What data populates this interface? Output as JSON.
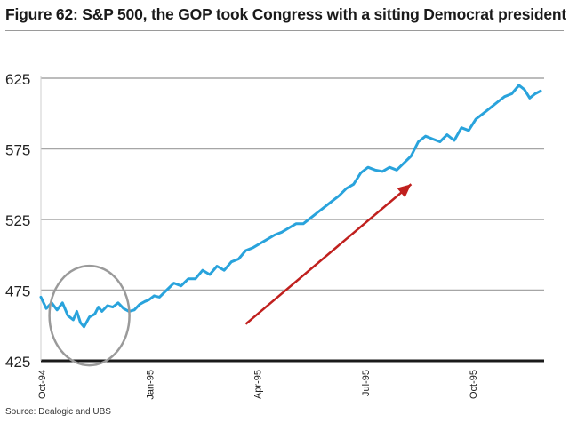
{
  "title": "Figure 62: S&P 500,  the GOP took Congress with a sitting Democrat president",
  "source": "Source:   Dealogic and UBS",
  "chart_data": {
    "type": "line",
    "title": "Figure 62: S&P 500,  the GOP took Congress with a sitting Democrat president",
    "xlabel": "",
    "ylabel": "",
    "ylim": [
      425,
      625
    ],
    "yticks": [
      425,
      475,
      525,
      575,
      625
    ],
    "xlim": [
      0,
      14
    ],
    "xticks": [
      {
        "pos": 0,
        "label": "Oct-94"
      },
      {
        "pos": 3,
        "label": "Jan-95"
      },
      {
        "pos": 6,
        "label": "Apr-95"
      },
      {
        "pos": 9,
        "label": "Jul-95"
      },
      {
        "pos": 12,
        "label": "Oct-95"
      }
    ],
    "grid": true,
    "line_color": "#29a3dc",
    "series": [
      {
        "name": "S&P 500",
        "x": [
          0.0,
          0.15,
          0.3,
          0.45,
          0.6,
          0.75,
          0.9,
          1.0,
          1.1,
          1.2,
          1.35,
          1.5,
          1.6,
          1.7,
          1.85,
          2.0,
          2.15,
          2.3,
          2.45,
          2.6,
          2.75,
          2.9,
          3.0,
          3.15,
          3.3,
          3.5,
          3.7,
          3.9,
          4.1,
          4.3,
          4.5,
          4.7,
          4.9,
          5.1,
          5.3,
          5.5,
          5.7,
          5.9,
          6.1,
          6.3,
          6.5,
          6.7,
          6.9,
          7.1,
          7.3,
          7.5,
          7.7,
          7.9,
          8.1,
          8.3,
          8.5,
          8.7,
          8.9,
          9.1,
          9.3,
          9.5,
          9.7,
          9.9,
          10.1,
          10.3,
          10.5,
          10.7,
          10.9,
          11.1,
          11.3,
          11.5,
          11.7,
          11.9,
          12.1,
          12.3,
          12.5,
          12.7,
          12.9,
          13.1,
          13.3,
          13.45,
          13.6,
          13.75,
          13.9
        ],
        "values": [
          470,
          462,
          466,
          461,
          466,
          457,
          454,
          460,
          452,
          449,
          456,
          458,
          463,
          460,
          464,
          463,
          466,
          462,
          460,
          461,
          465,
          467,
          468,
          471,
          470,
          475,
          480,
          478,
          483,
          483,
          489,
          486,
          492,
          489,
          495,
          497,
          503,
          505,
          508,
          511,
          514,
          516,
          519,
          522,
          522,
          526,
          530,
          534,
          538,
          542,
          547,
          550,
          558,
          562,
          560,
          559,
          562,
          560,
          565,
          570,
          580,
          584,
          582,
          580,
          585,
          581,
          590,
          588,
          596,
          600,
          604,
          608,
          612,
          614,
          620,
          617,
          611,
          614,
          616
        ]
      }
    ],
    "annotations": [
      {
        "type": "ellipse",
        "around": "Oct-94 to Dec-94 dip",
        "color": "#9a9a9a"
      },
      {
        "type": "arrow",
        "direction": "upward trend",
        "color": "#c0201e"
      }
    ]
  }
}
